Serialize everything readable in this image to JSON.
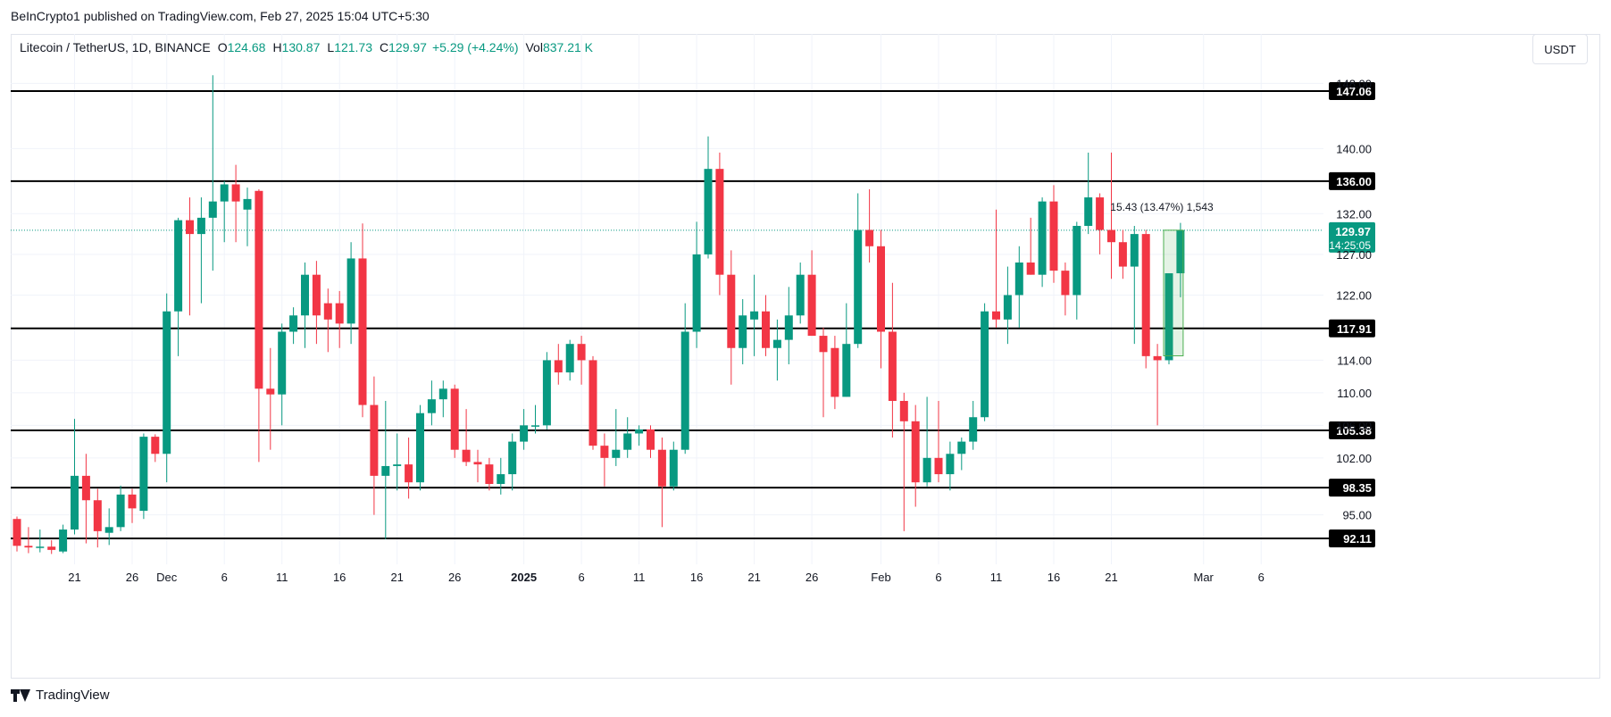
{
  "header": {
    "published": "BeInCrypto1 published on TradingView.com, Feb 27, 2025 15:04 UTC+5:30"
  },
  "legend": {
    "symbol": "Litecoin / TetherUS, 1D, BINANCE",
    "o_label": "O",
    "o_value": "124.68",
    "h_label": "H",
    "h_value": "130.87",
    "l_label": "L",
    "l_value": "121.73",
    "c_label": "C",
    "c_value": "129.97",
    "change": "+5.29 (+4.24%)",
    "vol_label": "Vol",
    "vol_value": "837.21 K"
  },
  "currency_button": "USDT",
  "footer": {
    "brand": "TradingView"
  },
  "colors": {
    "up": "#089981",
    "down": "#f23645",
    "level_line": "#000000",
    "grid": "#f0f3fa",
    "current_price": "#089981",
    "measure": "#4caf50"
  },
  "chart_data": {
    "type": "candlestick",
    "y_ticks": [
      "95.00",
      "102.00",
      "110.00",
      "114.00",
      "122.00",
      "132.00",
      "140.00"
    ],
    "y_ticks_obscured": [
      "106.00",
      "127.00",
      "148.00"
    ],
    "x_ticks": [
      "21",
      "26",
      "Dec",
      "6",
      "11",
      "16",
      "21",
      "26",
      "2025",
      "6",
      "11",
      "16",
      "21",
      "26",
      "Feb",
      "6",
      "11",
      "16",
      "21",
      "Mar",
      "6"
    ],
    "levels": [
      {
        "value": 147.06,
        "label": "147.06"
      },
      {
        "value": 136.0,
        "label": "136.00"
      },
      {
        "value": 117.91,
        "label": "117.91"
      },
      {
        "value": 105.38,
        "label": "105.38"
      },
      {
        "value": 98.35,
        "label": "98.35"
      },
      {
        "value": 92.11,
        "label": "92.11"
      }
    ],
    "current_price": {
      "value": 129.97,
      "label": "129.97",
      "countdown": "14:25:05"
    },
    "measurement": {
      "from": 114.54,
      "to": 129.97,
      "label": "15.43 (13.47%) 1,543"
    },
    "candles": [
      {
        "o": 94.5,
        "h": 94.8,
        "l": 90.5,
        "c": 91.2
      },
      {
        "o": 91.2,
        "h": 93.5,
        "l": 90.3,
        "c": 91.0
      },
      {
        "o": 91.0,
        "h": 93.2,
        "l": 90.4,
        "c": 91.1
      },
      {
        "o": 91.1,
        "h": 91.9,
        "l": 90.2,
        "c": 90.7
      },
      {
        "o": 90.5,
        "h": 93.8,
        "l": 90.3,
        "c": 93.2
      },
      {
        "o": 93.2,
        "h": 106.8,
        "l": 92.6,
        "c": 99.8
      },
      {
        "o": 99.8,
        "h": 102.5,
        "l": 91.5,
        "c": 96.8
      },
      {
        "o": 96.8,
        "h": 98.2,
        "l": 91.0,
        "c": 93.0
      },
      {
        "o": 92.8,
        "h": 95.8,
        "l": 91.3,
        "c": 93.5
      },
      {
        "o": 93.5,
        "h": 98.6,
        "l": 93.0,
        "c": 97.5
      },
      {
        "o": 97.5,
        "h": 98.2,
        "l": 94.0,
        "c": 95.8
      },
      {
        "o": 95.5,
        "h": 105.0,
        "l": 94.5,
        "c": 104.6
      },
      {
        "o": 104.6,
        "h": 104.9,
        "l": 101.5,
        "c": 102.5
      },
      {
        "o": 102.5,
        "h": 122.2,
        "l": 99.0,
        "c": 120.0
      },
      {
        "o": 120.0,
        "h": 131.5,
        "l": 114.5,
        "c": 131.2
      },
      {
        "o": 131.2,
        "h": 134.0,
        "l": 119.5,
        "c": 129.5
      },
      {
        "o": 129.5,
        "h": 134.0,
        "l": 121.0,
        "c": 131.5
      },
      {
        "o": 131.5,
        "h": 149.0,
        "l": 125.0,
        "c": 133.5
      },
      {
        "o": 133.5,
        "h": 136.0,
        "l": 128.5,
        "c": 135.6
      },
      {
        "o": 135.6,
        "h": 138.0,
        "l": 128.5,
        "c": 133.5
      },
      {
        "o": 132.5,
        "h": 135.2,
        "l": 128.0,
        "c": 133.8
      },
      {
        "o": 134.8,
        "h": 135.0,
        "l": 101.5,
        "c": 110.5
      },
      {
        "o": 110.5,
        "h": 115.5,
        "l": 103.0,
        "c": 109.8
      },
      {
        "o": 109.8,
        "h": 118.5,
        "l": 106.0,
        "c": 117.5
      },
      {
        "o": 117.5,
        "h": 120.5,
        "l": 116.0,
        "c": 119.5
      },
      {
        "o": 119.5,
        "h": 126.0,
        "l": 115.5,
        "c": 124.5
      },
      {
        "o": 124.5,
        "h": 126.2,
        "l": 116.0,
        "c": 119.5
      },
      {
        "o": 121.0,
        "h": 122.8,
        "l": 115.0,
        "c": 119.0
      },
      {
        "o": 121.0,
        "h": 122.5,
        "l": 115.5,
        "c": 118.5
      },
      {
        "o": 118.5,
        "h": 128.5,
        "l": 116.0,
        "c": 126.5
      },
      {
        "o": 126.5,
        "h": 130.8,
        "l": 107.0,
        "c": 108.5
      },
      {
        "o": 108.5,
        "h": 112.0,
        "l": 95.0,
        "c": 99.8
      },
      {
        "o": 99.8,
        "h": 109.0,
        "l": 92.0,
        "c": 101.0
      },
      {
        "o": 101.0,
        "h": 105.0,
        "l": 98.0,
        "c": 101.2
      },
      {
        "o": 101.2,
        "h": 104.5,
        "l": 97.0,
        "c": 99.0
      },
      {
        "o": 99.0,
        "h": 108.5,
        "l": 98.0,
        "c": 107.5
      },
      {
        "o": 107.5,
        "h": 111.5,
        "l": 106.0,
        "c": 109.2
      },
      {
        "o": 109.2,
        "h": 111.5,
        "l": 107.0,
        "c": 110.5
      },
      {
        "o": 110.5,
        "h": 111.0,
        "l": 102.0,
        "c": 103.0
      },
      {
        "o": 103.0,
        "h": 108.0,
        "l": 101.0,
        "c": 101.5
      },
      {
        "o": 101.5,
        "h": 103.0,
        "l": 99.0,
        "c": 101.2
      },
      {
        "o": 101.2,
        "h": 102.0,
        "l": 98.0,
        "c": 98.8
      },
      {
        "o": 98.8,
        "h": 102.0,
        "l": 97.5,
        "c": 100.0
      },
      {
        "o": 100.0,
        "h": 105.0,
        "l": 98.0,
        "c": 104.0
      },
      {
        "o": 104.0,
        "h": 108.0,
        "l": 103.0,
        "c": 106.0
      },
      {
        "o": 106.0,
        "h": 108.5,
        "l": 105.0,
        "c": 106.0
      },
      {
        "o": 106.0,
        "h": 115.0,
        "l": 105.5,
        "c": 114.0
      },
      {
        "o": 114.0,
        "h": 116.0,
        "l": 111.0,
        "c": 112.5
      },
      {
        "o": 112.5,
        "h": 116.5,
        "l": 111.5,
        "c": 116.0
      },
      {
        "o": 116.0,
        "h": 117.0,
        "l": 111.0,
        "c": 114.0
      },
      {
        "o": 114.0,
        "h": 114.5,
        "l": 103.0,
        "c": 103.5
      },
      {
        "o": 103.5,
        "h": 105.0,
        "l": 98.5,
        "c": 102.0
      },
      {
        "o": 102.0,
        "h": 108.0,
        "l": 101.0,
        "c": 103.0
      },
      {
        "o": 103.0,
        "h": 107.0,
        "l": 102.0,
        "c": 105.0
      },
      {
        "o": 105.0,
        "h": 106.0,
        "l": 103.5,
        "c": 105.5
      },
      {
        "o": 105.5,
        "h": 106.0,
        "l": 102.0,
        "c": 103.0
      },
      {
        "o": 103.0,
        "h": 104.5,
        "l": 93.5,
        "c": 98.5
      },
      {
        "o": 98.5,
        "h": 104.0,
        "l": 98.0,
        "c": 103.0
      },
      {
        "o": 103.0,
        "h": 121.0,
        "l": 102.5,
        "c": 117.5
      },
      {
        "o": 117.5,
        "h": 131.0,
        "l": 115.5,
        "c": 127.0
      },
      {
        "o": 127.0,
        "h": 141.5,
        "l": 126.5,
        "c": 137.5
      },
      {
        "o": 137.5,
        "h": 139.5,
        "l": 122.0,
        "c": 124.5
      },
      {
        "o": 124.5,
        "h": 127.5,
        "l": 111.0,
        "c": 115.5
      },
      {
        "o": 115.5,
        "h": 121.5,
        "l": 113.5,
        "c": 119.5
      },
      {
        "o": 119.0,
        "h": 124.5,
        "l": 114.5,
        "c": 120.0
      },
      {
        "o": 120.0,
        "h": 122.0,
        "l": 114.5,
        "c": 115.5
      },
      {
        "o": 115.5,
        "h": 119.0,
        "l": 111.5,
        "c": 116.5
      },
      {
        "o": 116.5,
        "h": 123.0,
        "l": 113.5,
        "c": 119.5
      },
      {
        "o": 119.5,
        "h": 126.0,
        "l": 118.5,
        "c": 124.5
      },
      {
        "o": 124.5,
        "h": 127.5,
        "l": 117.0,
        "c": 117.0
      },
      {
        "o": 117.0,
        "h": 118.0,
        "l": 107.0,
        "c": 115.0
      },
      {
        "o": 115.5,
        "h": 117.0,
        "l": 108.0,
        "c": 109.5
      },
      {
        "o": 109.5,
        "h": 121.0,
        "l": 109.5,
        "c": 116.0
      },
      {
        "o": 116.0,
        "h": 134.5,
        "l": 115.5,
        "c": 130.0
      },
      {
        "o": 130.0,
        "h": 135.0,
        "l": 126.0,
        "c": 128.0
      },
      {
        "o": 128.0,
        "h": 130.0,
        "l": 113.0,
        "c": 117.5
      },
      {
        "o": 117.5,
        "h": 123.5,
        "l": 104.5,
        "c": 109.0
      },
      {
        "o": 109.0,
        "h": 110.0,
        "l": 93.0,
        "c": 106.5
      },
      {
        "o": 106.5,
        "h": 108.5,
        "l": 96.0,
        "c": 99.0
      },
      {
        "o": 99.0,
        "h": 109.5,
        "l": 98.5,
        "c": 102.0
      },
      {
        "o": 102.0,
        "h": 109.0,
        "l": 99.0,
        "c": 100.0
      },
      {
        "o": 100.0,
        "h": 104.0,
        "l": 98.0,
        "c": 102.5
      },
      {
        "o": 102.5,
        "h": 104.5,
        "l": 100.5,
        "c": 104.0
      },
      {
        "o": 104.0,
        "h": 109.0,
        "l": 103.0,
        "c": 107.0
      },
      {
        "o": 107.0,
        "h": 121.0,
        "l": 106.5,
        "c": 120.0
      },
      {
        "o": 120.0,
        "h": 132.5,
        "l": 118.0,
        "c": 119.0
      },
      {
        "o": 119.0,
        "h": 125.5,
        "l": 116.0,
        "c": 122.0
      },
      {
        "o": 122.0,
        "h": 128.0,
        "l": 118.0,
        "c": 126.0
      },
      {
        "o": 126.0,
        "h": 131.5,
        "l": 124.5,
        "c": 124.5
      },
      {
        "o": 124.5,
        "h": 134.0,
        "l": 123.0,
        "c": 133.5
      },
      {
        "o": 133.5,
        "h": 135.5,
        "l": 123.5,
        "c": 125.0
      },
      {
        "o": 125.0,
        "h": 126.0,
        "l": 119.5,
        "c": 122.0
      },
      {
        "o": 122.0,
        "h": 131.0,
        "l": 119.0,
        "c": 130.5
      },
      {
        "o": 130.5,
        "h": 139.5,
        "l": 129.5,
        "c": 134.0
      },
      {
        "o": 134.0,
        "h": 134.5,
        "l": 127.0,
        "c": 130.0
      },
      {
        "o": 130.0,
        "h": 139.5,
        "l": 124.0,
        "c": 128.5
      },
      {
        "o": 128.5,
        "h": 130.0,
        "l": 124.0,
        "c": 125.5
      },
      {
        "o": 125.5,
        "h": 130.5,
        "l": 116.0,
        "c": 129.5
      },
      {
        "o": 129.5,
        "h": 130.0,
        "l": 113.0,
        "c": 114.5
      },
      {
        "o": 114.5,
        "h": 116.0,
        "l": 106.0,
        "c": 114.0
      },
      {
        "o": 114.0,
        "h": 124.5,
        "l": 113.5,
        "c": 124.68
      },
      {
        "o": 124.68,
        "h": 130.87,
        "l": 121.73,
        "c": 129.97
      }
    ]
  }
}
